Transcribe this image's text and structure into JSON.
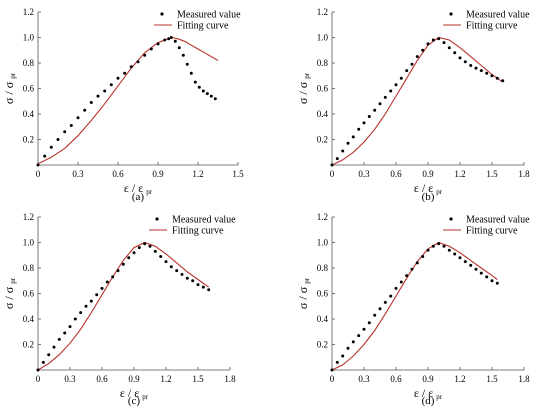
{
  "colors": {
    "measured": "#000000",
    "fit": "#b8322e",
    "axis": "#555555"
  },
  "axis_text": {
    "ylabel_main": "σ / σ",
    "ylabel_sub": "pr",
    "xlabel_main": "ε / ε",
    "xlabel_sub": "pr"
  },
  "legend": {
    "measured": "Measured value",
    "fit": "Fitting curve"
  },
  "chart_data": [
    {
      "type": "scatter",
      "panel_label": "(a)",
      "xlim": [
        0,
        1.5
      ],
      "ylim": [
        0,
        1.2
      ],
      "xticks": [
        0.0,
        0.3,
        0.6,
        0.9,
        1.2,
        1.5
      ],
      "xtick_labels": [
        "0",
        "0.3",
        "0.6",
        "0.9",
        "1.2",
        "1.5"
      ],
      "yticks": [
        0.2,
        0.4,
        0.6,
        0.8,
        1.0,
        1.2
      ],
      "ytick_labels": [
        "0.2",
        "0.4",
        "0.6",
        "0.8",
        "1.0",
        "1.2"
      ],
      "legend_position": "top-right",
      "grid": false,
      "series": [
        {
          "name": "Measured value",
          "x": [
            0.0,
            0.05,
            0.1,
            0.15,
            0.2,
            0.25,
            0.3,
            0.35,
            0.4,
            0.45,
            0.5,
            0.55,
            0.6,
            0.65,
            0.7,
            0.75,
            0.8,
            0.85,
            0.9,
            0.95,
            0.98,
            1.0,
            1.03,
            1.06,
            1.09,
            1.12,
            1.15,
            1.18,
            1.21,
            1.24,
            1.27,
            1.3,
            1.33
          ],
          "y": [
            0.0,
            0.07,
            0.14,
            0.2,
            0.26,
            0.31,
            0.37,
            0.43,
            0.49,
            0.54,
            0.58,
            0.63,
            0.68,
            0.72,
            0.77,
            0.81,
            0.86,
            0.91,
            0.95,
            0.98,
            0.99,
            1.0,
            0.97,
            0.92,
            0.86,
            0.79,
            0.72,
            0.65,
            0.61,
            0.58,
            0.56,
            0.54,
            0.52
          ]
        },
        {
          "name": "Fitting curve",
          "x": [
            0.0,
            0.1,
            0.2,
            0.3,
            0.4,
            0.5,
            0.6,
            0.7,
            0.8,
            0.9,
            1.0,
            1.05,
            1.1,
            1.15,
            1.2,
            1.25,
            1.3,
            1.35
          ],
          "y": [
            0.01,
            0.06,
            0.13,
            0.23,
            0.35,
            0.48,
            0.62,
            0.76,
            0.88,
            0.96,
            1.0,
            0.99,
            0.97,
            0.94,
            0.91,
            0.88,
            0.85,
            0.82
          ]
        }
      ]
    },
    {
      "type": "scatter",
      "panel_label": "(b)",
      "xlim": [
        0,
        1.8
      ],
      "ylim": [
        0,
        1.2
      ],
      "xticks": [
        0.0,
        0.3,
        0.6,
        0.9,
        1.2,
        1.5,
        1.8
      ],
      "xtick_labels": [
        "0",
        "0.3",
        "0.6",
        "0.9",
        "1.2",
        "1.5",
        "1.8"
      ],
      "yticks": [
        0.2,
        0.4,
        0.6,
        0.8,
        1.0,
        1.2
      ],
      "ytick_labels": [
        "0.2",
        "0.4",
        "0.6",
        "0.8",
        "1.0",
        "1.2"
      ],
      "legend_position": "top-right",
      "grid": false,
      "series": [
        {
          "name": "Measured value",
          "x": [
            0.0,
            0.05,
            0.1,
            0.15,
            0.2,
            0.25,
            0.3,
            0.35,
            0.4,
            0.45,
            0.5,
            0.55,
            0.6,
            0.65,
            0.7,
            0.75,
            0.8,
            0.85,
            0.9,
            0.95,
            1.0,
            1.05,
            1.1,
            1.15,
            1.2,
            1.25,
            1.3,
            1.35,
            1.4,
            1.45,
            1.5,
            1.55,
            1.6
          ],
          "y": [
            0.0,
            0.05,
            0.11,
            0.17,
            0.22,
            0.28,
            0.33,
            0.38,
            0.43,
            0.48,
            0.53,
            0.58,
            0.63,
            0.68,
            0.74,
            0.79,
            0.85,
            0.9,
            0.95,
            0.98,
            0.99,
            0.96,
            0.92,
            0.88,
            0.84,
            0.81,
            0.78,
            0.76,
            0.74,
            0.72,
            0.7,
            0.68,
            0.66
          ]
        },
        {
          "name": "Fitting curve",
          "x": [
            0.0,
            0.1,
            0.2,
            0.3,
            0.4,
            0.5,
            0.6,
            0.7,
            0.8,
            0.9,
            1.0,
            1.1,
            1.2,
            1.3,
            1.4,
            1.5,
            1.6
          ],
          "y": [
            0.0,
            0.04,
            0.1,
            0.18,
            0.28,
            0.4,
            0.54,
            0.68,
            0.82,
            0.94,
            1.0,
            0.98,
            0.92,
            0.85,
            0.78,
            0.71,
            0.65
          ]
        }
      ]
    },
    {
      "type": "scatter",
      "panel_label": "(c)",
      "xlim": [
        0,
        1.8
      ],
      "ylim": [
        0,
        1.2
      ],
      "xticks": [
        0.0,
        0.3,
        0.6,
        0.9,
        1.2,
        1.5,
        1.8
      ],
      "xtick_labels": [
        "0",
        "0.3",
        "0.6",
        "0.9",
        "1.2",
        "1.5",
        "1.8"
      ],
      "yticks": [
        0.2,
        0.4,
        0.6,
        0.8,
        1.0,
        1.2
      ],
      "ytick_labels": [
        "0.2",
        "0.4",
        "0.6",
        "0.8",
        "1.0",
        "1.2"
      ],
      "legend_position": "top-right",
      "grid": false,
      "series": [
        {
          "name": "Measured value",
          "x": [
            0.0,
            0.05,
            0.1,
            0.15,
            0.2,
            0.25,
            0.3,
            0.35,
            0.4,
            0.45,
            0.5,
            0.55,
            0.6,
            0.65,
            0.7,
            0.75,
            0.8,
            0.85,
            0.9,
            0.95,
            1.0,
            1.05,
            1.1,
            1.15,
            1.2,
            1.25,
            1.3,
            1.35,
            1.4,
            1.45,
            1.5,
            1.55,
            1.6
          ],
          "y": [
            0.0,
            0.06,
            0.12,
            0.18,
            0.24,
            0.29,
            0.34,
            0.4,
            0.45,
            0.5,
            0.54,
            0.59,
            0.64,
            0.69,
            0.73,
            0.78,
            0.83,
            0.88,
            0.92,
            0.96,
            0.99,
            0.97,
            0.93,
            0.89,
            0.85,
            0.81,
            0.78,
            0.75,
            0.72,
            0.7,
            0.67,
            0.65,
            0.63
          ]
        },
        {
          "name": "Fitting curve",
          "x": [
            0.0,
            0.1,
            0.2,
            0.3,
            0.4,
            0.5,
            0.6,
            0.7,
            0.8,
            0.9,
            1.0,
            1.1,
            1.2,
            1.3,
            1.4,
            1.5,
            1.6
          ],
          "y": [
            0.0,
            0.05,
            0.12,
            0.21,
            0.32,
            0.45,
            0.59,
            0.73,
            0.86,
            0.96,
            1.0,
            0.97,
            0.91,
            0.84,
            0.77,
            0.71,
            0.65
          ]
        }
      ]
    },
    {
      "type": "scatter",
      "panel_label": "(d)",
      "xlim": [
        0,
        1.8
      ],
      "ylim": [
        0,
        1.2
      ],
      "xticks": [
        0.0,
        0.3,
        0.6,
        0.9,
        1.2,
        1.5,
        1.8
      ],
      "xtick_labels": [
        "0",
        "0.3",
        "0.6",
        "0.9",
        "1.2",
        "1.5",
        "1.8"
      ],
      "yticks": [
        0.2,
        0.4,
        0.6,
        0.8,
        1.0,
        1.2
      ],
      "ytick_labels": [
        "0.2",
        "0.4",
        "0.6",
        "0.8",
        "1.0",
        "1.2"
      ],
      "legend_position": "top-right",
      "grid": false,
      "series": [
        {
          "name": "Measured value",
          "x": [
            0.0,
            0.05,
            0.1,
            0.15,
            0.2,
            0.25,
            0.3,
            0.35,
            0.4,
            0.45,
            0.5,
            0.55,
            0.6,
            0.65,
            0.7,
            0.75,
            0.8,
            0.85,
            0.9,
            0.95,
            1.0,
            1.05,
            1.1,
            1.15,
            1.2,
            1.25,
            1.3,
            1.35,
            1.4,
            1.45,
            1.5,
            1.55
          ],
          "y": [
            0.0,
            0.06,
            0.11,
            0.17,
            0.22,
            0.27,
            0.32,
            0.37,
            0.43,
            0.48,
            0.53,
            0.58,
            0.64,
            0.69,
            0.74,
            0.79,
            0.84,
            0.89,
            0.94,
            0.97,
            0.99,
            0.97,
            0.94,
            0.91,
            0.88,
            0.85,
            0.82,
            0.79,
            0.76,
            0.73,
            0.7,
            0.68
          ]
        },
        {
          "name": "Fitting curve",
          "x": [
            0.0,
            0.1,
            0.2,
            0.3,
            0.4,
            0.5,
            0.6,
            0.7,
            0.8,
            0.9,
            1.0,
            1.1,
            1.2,
            1.3,
            1.4,
            1.5,
            1.55
          ],
          "y": [
            0.0,
            0.04,
            0.11,
            0.2,
            0.31,
            0.44,
            0.58,
            0.72,
            0.85,
            0.95,
            1.0,
            0.97,
            0.92,
            0.86,
            0.8,
            0.74,
            0.71
          ]
        }
      ]
    }
  ]
}
